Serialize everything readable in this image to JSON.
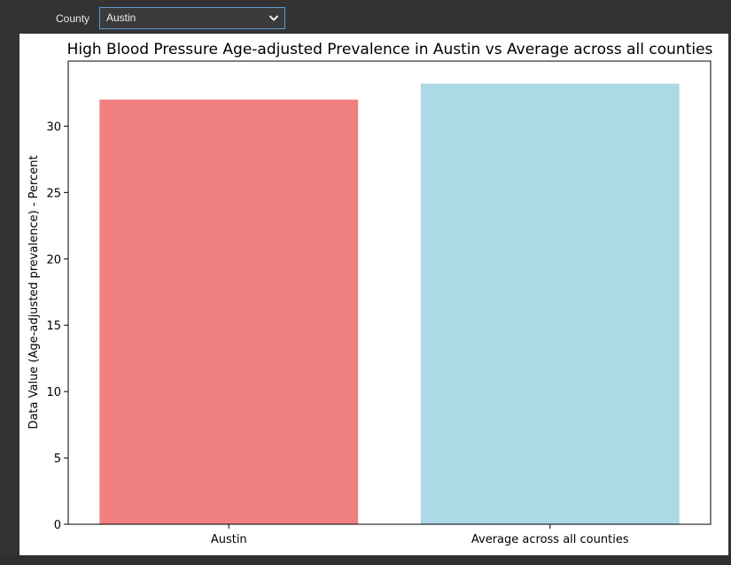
{
  "filter": {
    "label": "County",
    "selected": "Austin"
  },
  "chart_data": {
    "type": "bar",
    "title": "High Blood Pressure Age-adjusted Prevalence in Austin vs Average across all counties",
    "xlabel": "",
    "ylabel": "Data Value (Age-adjusted prevalence) - Percent",
    "categories": [
      "Austin",
      "Average across all counties"
    ],
    "values": [
      32.0,
      33.2
    ],
    "colors": [
      "#f08080",
      "#add8e6"
    ],
    "ylim": [
      0,
      34.9
    ],
    "yticks": [
      "0",
      "5",
      "10",
      "15",
      "20",
      "25",
      "30"
    ],
    "grid": false,
    "legend": "none"
  }
}
